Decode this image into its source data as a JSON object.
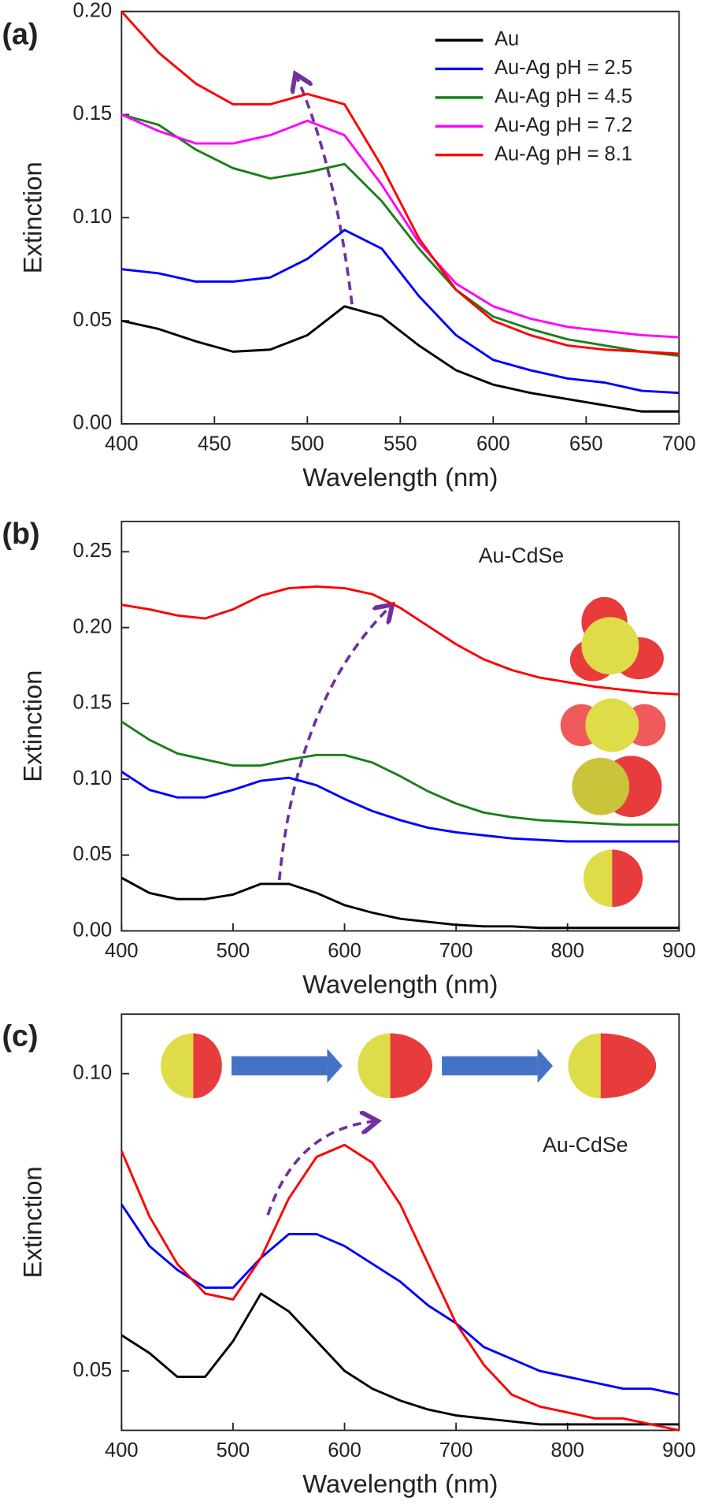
{
  "chart_data": [
    {
      "type": "line",
      "panel_label": "(a)",
      "x_label": "Wavelength (nm)",
      "y_label": "Extinction",
      "x": [
        400,
        420,
        440,
        460,
        480,
        500,
        520,
        540,
        560,
        580,
        600,
        620,
        640,
        660,
        680,
        700
      ],
      "series": [
        {
          "name": "Au",
          "color": "#000000",
          "values": [
            0.05,
            0.046,
            0.04,
            0.035,
            0.036,
            0.043,
            0.057,
            0.052,
            0.038,
            0.026,
            0.019,
            0.015,
            0.012,
            0.009,
            0.006,
            0.006
          ]
        },
        {
          "name": "Au-Ag pH = 2.5",
          "color": "#0000ff",
          "values": [
            0.075,
            0.073,
            0.069,
            0.069,
            0.071,
            0.08,
            0.094,
            0.085,
            0.062,
            0.043,
            0.031,
            0.026,
            0.022,
            0.02,
            0.016,
            0.015
          ]
        },
        {
          "name": "Au-Ag pH = 4.5",
          "color": "#1a801a",
          "values": [
            0.15,
            0.145,
            0.133,
            0.124,
            0.119,
            0.122,
            0.126,
            0.108,
            0.085,
            0.065,
            0.052,
            0.046,
            0.041,
            0.038,
            0.035,
            0.033
          ]
        },
        {
          "name": "Au-Ag pH = 7.2",
          "color": "#ff00ff",
          "values": [
            0.15,
            0.142,
            0.136,
            0.136,
            0.14,
            0.147,
            0.14,
            0.116,
            0.088,
            0.068,
            0.057,
            0.051,
            0.047,
            0.045,
            0.043,
            0.042
          ]
        },
        {
          "name": "Au-Ag pH = 8.1",
          "color": "#ff0000",
          "values": [
            0.2,
            0.18,
            0.165,
            0.155,
            0.155,
            0.16,
            0.155,
            0.125,
            0.09,
            0.065,
            0.05,
            0.043,
            0.038,
            0.036,
            0.035,
            0.034
          ]
        }
      ],
      "xlim": [
        400,
        700
      ],
      "ylim": [
        0,
        0.2
      ],
      "xticks": [
        400,
        450,
        500,
        550,
        600,
        650,
        700
      ],
      "yticks": [
        {
          "value": 0,
          "label": "0.00"
        },
        0.05,
        {
          "value": 0.1,
          "label": "0.10"
        },
        0.15,
        {
          "value": 0.2,
          "label": "0.20"
        }
      ],
      "legend": "upper right"
    },
    {
      "type": "line",
      "panel_label": "(b)",
      "x_label": "Wavelength (nm)",
      "y_label": "Extinction",
      "annotation": "Au-CdSe",
      "x": [
        400,
        425,
        450,
        475,
        500,
        525,
        550,
        575,
        600,
        625,
        650,
        675,
        700,
        725,
        750,
        775,
        800,
        825,
        850,
        875,
        900
      ],
      "series": [
        {
          "color": "#000000",
          "values": [
            0.035,
            0.025,
            0.021,
            0.021,
            0.024,
            0.031,
            0.031,
            0.025,
            0.017,
            0.012,
            0.008,
            0.006,
            0.004,
            0.003,
            0.003,
            0.002,
            0.002,
            0.002,
            0.002,
            0.002,
            0.002
          ]
        },
        {
          "color": "#0000ff",
          "values": [
            0.105,
            0.093,
            0.088,
            0.088,
            0.093,
            0.099,
            0.101,
            0.096,
            0.087,
            0.079,
            0.073,
            0.068,
            0.065,
            0.063,
            0.061,
            0.06,
            0.059,
            0.059,
            0.059,
            0.059,
            0.059
          ]
        },
        {
          "color": "#1a801a",
          "values": [
            0.138,
            0.126,
            0.117,
            0.113,
            0.109,
            0.109,
            0.113,
            0.116,
            0.116,
            0.111,
            0.102,
            0.092,
            0.084,
            0.078,
            0.075,
            0.073,
            0.072,
            0.071,
            0.07,
            0.07,
            0.07
          ]
        },
        {
          "color": "#ff0000",
          "values": [
            0.215,
            0.212,
            0.208,
            0.206,
            0.212,
            0.221,
            0.226,
            0.227,
            0.226,
            0.222,
            0.213,
            0.201,
            0.189,
            0.179,
            0.172,
            0.167,
            0.164,
            0.161,
            0.159,
            0.157,
            0.156
          ]
        }
      ],
      "xlim": [
        400,
        900
      ],
      "ylim": [
        0,
        0.27
      ],
      "xticks": [
        400,
        500,
        600,
        700,
        800,
        900
      ],
      "yticks": [
        {
          "value": 0,
          "label": "0.00"
        },
        0.05,
        {
          "value": 0.1,
          "label": "0.10"
        },
        0.15,
        {
          "value": 0.2,
          "label": "0.20"
        },
        0.25
      ]
    },
    {
      "type": "line",
      "panel_label": "(c)",
      "x_label": "Wavelength (nm)",
      "y_label": "Extinction",
      "annotation": "Au-CdSe",
      "x": [
        400,
        425,
        450,
        475,
        500,
        525,
        550,
        575,
        600,
        625,
        650,
        675,
        700,
        725,
        750,
        775,
        800,
        825,
        850,
        875,
        900
      ],
      "series": [
        {
          "color": "#000000",
          "values": [
            0.056,
            0.053,
            0.049,
            0.049,
            0.055,
            0.063,
            0.06,
            0.055,
            0.05,
            0.047,
            0.045,
            0.0435,
            0.0425,
            0.042,
            0.0415,
            0.041,
            0.041,
            0.041,
            0.041,
            0.041,
            0.041
          ]
        },
        {
          "color": "#0000ff",
          "values": [
            0.078,
            0.071,
            0.067,
            0.064,
            0.064,
            0.069,
            0.073,
            0.073,
            0.071,
            0.068,
            0.065,
            0.061,
            0.058,
            0.054,
            0.052,
            0.05,
            0.049,
            0.048,
            0.047,
            0.047,
            0.046
          ]
        },
        {
          "color": "#ff0000",
          "values": [
            0.087,
            0.076,
            0.068,
            0.063,
            0.062,
            0.069,
            0.079,
            0.086,
            0.088,
            0.085,
            0.078,
            0.068,
            0.058,
            0.051,
            0.046,
            0.044,
            0.043,
            0.042,
            0.042,
            0.041,
            0.04
          ]
        }
      ],
      "xlim": [
        400,
        900
      ],
      "ylim": [
        0.04,
        0.11
      ],
      "xticks": [
        400,
        500,
        600,
        700,
        800,
        900
      ],
      "yticks": [
        0.05,
        {
          "value": 0.1,
          "label": "0.10"
        }
      ]
    }
  ]
}
